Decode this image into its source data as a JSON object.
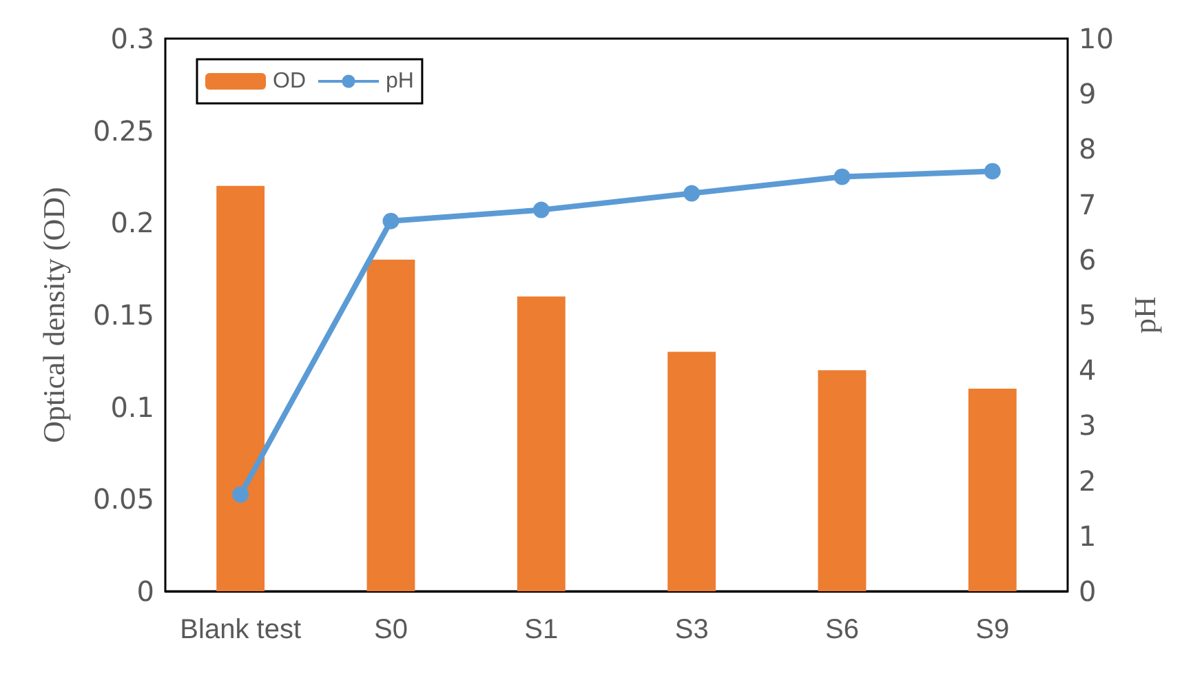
{
  "chart_data": {
    "type": "bar",
    "categories": [
      "Blank test",
      "S0",
      "S1",
      "S3",
      "S6",
      "S9"
    ],
    "series": [
      {
        "name": "OD",
        "color": "#ed7d31",
        "values": [
          0.22,
          0.18,
          0.16,
          0.13,
          0.12,
          0.11
        ]
      },
      {
        "name": "pH",
        "type": "line",
        "axis": "y2",
        "color": "#5b9bd5",
        "marker": "circle",
        "values": [
          1.75,
          6.7,
          6.9,
          7.2,
          7.5,
          7.6
        ]
      }
    ],
    "ylabel": "Optical density (OD)",
    "y2label": "pH",
    "ylim": [
      0,
      0.3
    ],
    "yticks": [
      0,
      0.05,
      0.1,
      0.15,
      0.2,
      0.25,
      0.3
    ],
    "y2lim": [
      0,
      10
    ],
    "y2ticks": [
      0,
      1,
      2,
      3,
      4,
      5,
      6,
      7,
      8,
      9,
      10
    ],
    "grid": false,
    "legend": "top left"
  }
}
